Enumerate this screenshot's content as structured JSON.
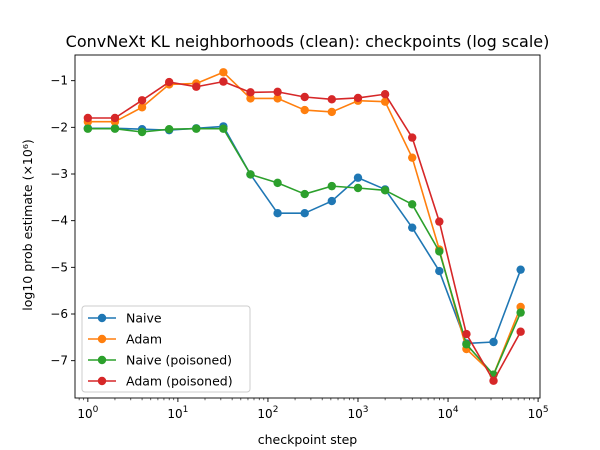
{
  "chart_data": {
    "type": "line",
    "title": "ConvNeXt KL neighborhoods (clean): checkpoints (log scale)",
    "xlabel": "checkpoint step",
    "ylabel": "log10 prob estimate (×10⁶)",
    "xscale": "log",
    "xlim": [
      0.72,
      105000
    ],
    "ylim": [
      -7.8,
      -0.45
    ],
    "x_ticks": [
      {
        "value": 1,
        "base": "10",
        "exp": "0"
      },
      {
        "value": 10,
        "base": "10",
        "exp": "1"
      },
      {
        "value": 100,
        "base": "10",
        "exp": "2"
      },
      {
        "value": 1000,
        "base": "10",
        "exp": "3"
      },
      {
        "value": 10000,
        "base": "10",
        "exp": "4"
      },
      {
        "value": 100000,
        "base": "10",
        "exp": "5"
      }
    ],
    "y_ticks": [
      {
        "value": -1,
        "label": "−1"
      },
      {
        "value": -2,
        "label": "−2"
      },
      {
        "value": -3,
        "label": "−3"
      },
      {
        "value": -4,
        "label": "−4"
      },
      {
        "value": -5,
        "label": "−5"
      },
      {
        "value": -6,
        "label": "−6"
      },
      {
        "value": -7,
        "label": "−7"
      }
    ],
    "x": [
      1,
      2,
      4,
      8,
      16,
      32,
      64,
      128,
      256,
      512,
      1000,
      2000,
      4000,
      8000,
      16000,
      32000,
      64000
    ],
    "series": [
      {
        "name": "Naive",
        "color": "#1f77b4",
        "values": [
          -2.02,
          -2.02,
          -2.04,
          -2.06,
          -2.02,
          -1.98,
          -3.01,
          -3.84,
          -3.84,
          -3.58,
          -3.08,
          -3.33,
          -4.15,
          -5.08,
          -6.63,
          -6.6,
          -5.05
        ]
      },
      {
        "name": "Adam",
        "color": "#ff7f0e",
        "values": [
          -1.88,
          -1.88,
          -1.57,
          -1.08,
          -1.06,
          -0.82,
          -1.38,
          -1.38,
          -1.63,
          -1.67,
          -1.43,
          -1.45,
          -2.65,
          -4.62,
          -6.75,
          -7.3,
          -5.85
        ]
      },
      {
        "name": "Naive (poisoned)",
        "color": "#2ca02c",
        "values": [
          -2.03,
          -2.03,
          -2.1,
          -2.04,
          -2.03,
          -2.03,
          -3.01,
          -3.19,
          -3.43,
          -3.26,
          -3.3,
          -3.35,
          -3.65,
          -4.66,
          -6.65,
          -7.3,
          -5.97
        ]
      },
      {
        "name": "Adam (poisoned)",
        "color": "#d62728",
        "values": [
          -1.8,
          -1.8,
          -1.42,
          -1.03,
          -1.13,
          -1.02,
          -1.25,
          -1.24,
          -1.35,
          -1.4,
          -1.37,
          -1.29,
          -2.22,
          -4.02,
          -6.43,
          -7.43,
          -6.38
        ]
      }
    ],
    "grid": false,
    "legend": "lower-left"
  }
}
